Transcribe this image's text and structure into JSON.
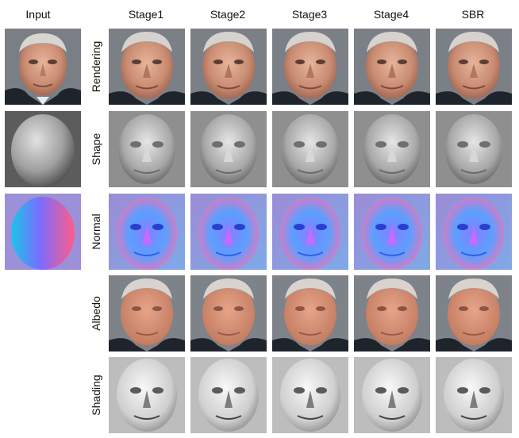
{
  "columns": [
    "Input",
    "Stage1",
    "Stage2",
    "Stage3",
    "Stage4",
    "SBR"
  ],
  "rows": [
    "Rendering",
    "Shape",
    "Normal",
    "Albedo",
    "Shading"
  ]
}
